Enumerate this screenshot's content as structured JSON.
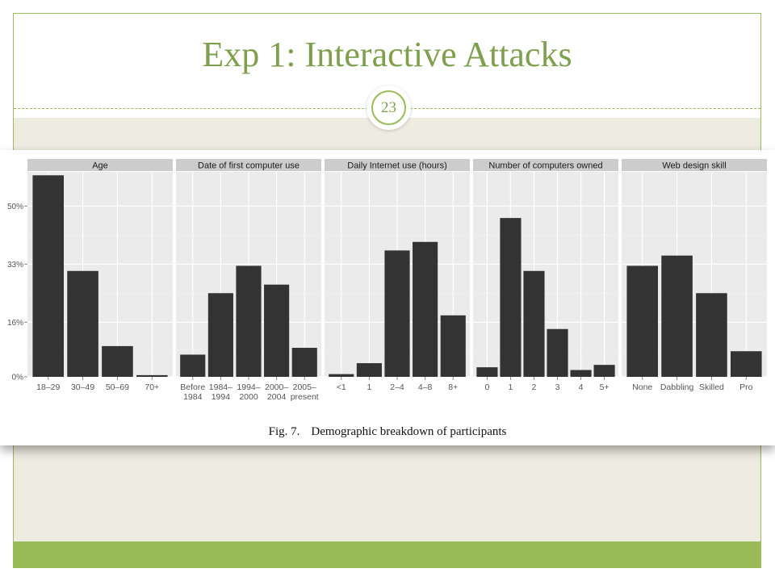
{
  "slide": {
    "title": "Exp 1: Interactive Attacks",
    "number": "23"
  },
  "figure": {
    "caption_label": "Fig. 7.",
    "caption_text": "Demographic breakdown of participants"
  },
  "colors": {
    "accent_green": "#9bbb59",
    "title_green": "#7ea04d",
    "band_beige": "#eeece1",
    "bar_fill": "#333333",
    "panel_bg": "#ebebeb",
    "strip_bg": "#cccccc"
  },
  "chart_data": {
    "type": "bar",
    "shared_y_axis": {
      "range": [
        0,
        60
      ],
      "ticks": [
        0,
        16,
        33,
        50
      ],
      "tick_labels": [
        "0%",
        "16%",
        "33%",
        "50%"
      ]
    },
    "panels": [
      {
        "title": "Age",
        "categories": [
          "18–29",
          "30–49",
          "50–69",
          "70+"
        ],
        "values": [
          59,
          31,
          9,
          0.5
        ]
      },
      {
        "title": "Date of first computer use",
        "categories": [
          "Before\n1984",
          "1984–\n1994",
          "1994–\n2000",
          "2000–\n2004",
          "2005–\npresent"
        ],
        "values": [
          6.5,
          24.5,
          32.5,
          27,
          8.5
        ]
      },
      {
        "title": "Daily Internet use (hours)",
        "categories": [
          "<1",
          "1",
          "2–4",
          "4–8",
          "8+"
        ],
        "values": [
          0.8,
          4,
          37,
          39.5,
          18
        ]
      },
      {
        "title": "Number of computers owned",
        "categories": [
          "0",
          "1",
          "2",
          "3",
          "4",
          "5+"
        ],
        "values": [
          2.8,
          46.5,
          31,
          14,
          2,
          3.5
        ]
      },
      {
        "title": "Web design skill",
        "categories": [
          "None",
          "Dabbling",
          "Skilled",
          "Pro"
        ],
        "values": [
          32.5,
          35.5,
          24.5,
          7.5
        ]
      }
    ]
  }
}
